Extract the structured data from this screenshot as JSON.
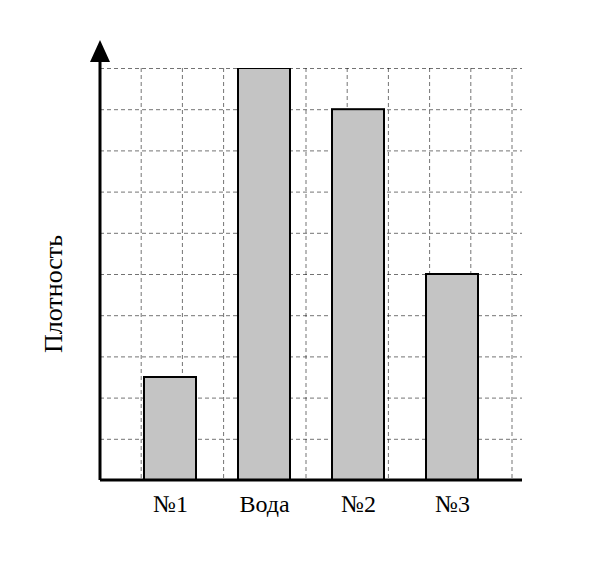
{
  "chart_data": {
    "type": "bar",
    "y_label": "Плотность",
    "categories": [
      "№1",
      "Вода",
      "№2",
      "№3"
    ],
    "values": [
      2.5,
      10,
      9,
      5
    ],
    "color": "#c4c4c4",
    "ylim": [
      0,
      10
    ],
    "yticks": [
      0,
      1,
      2,
      3,
      4,
      5,
      6,
      7,
      8,
      9,
      10
    ],
    "grid": true,
    "tick_labels": "x"
  }
}
